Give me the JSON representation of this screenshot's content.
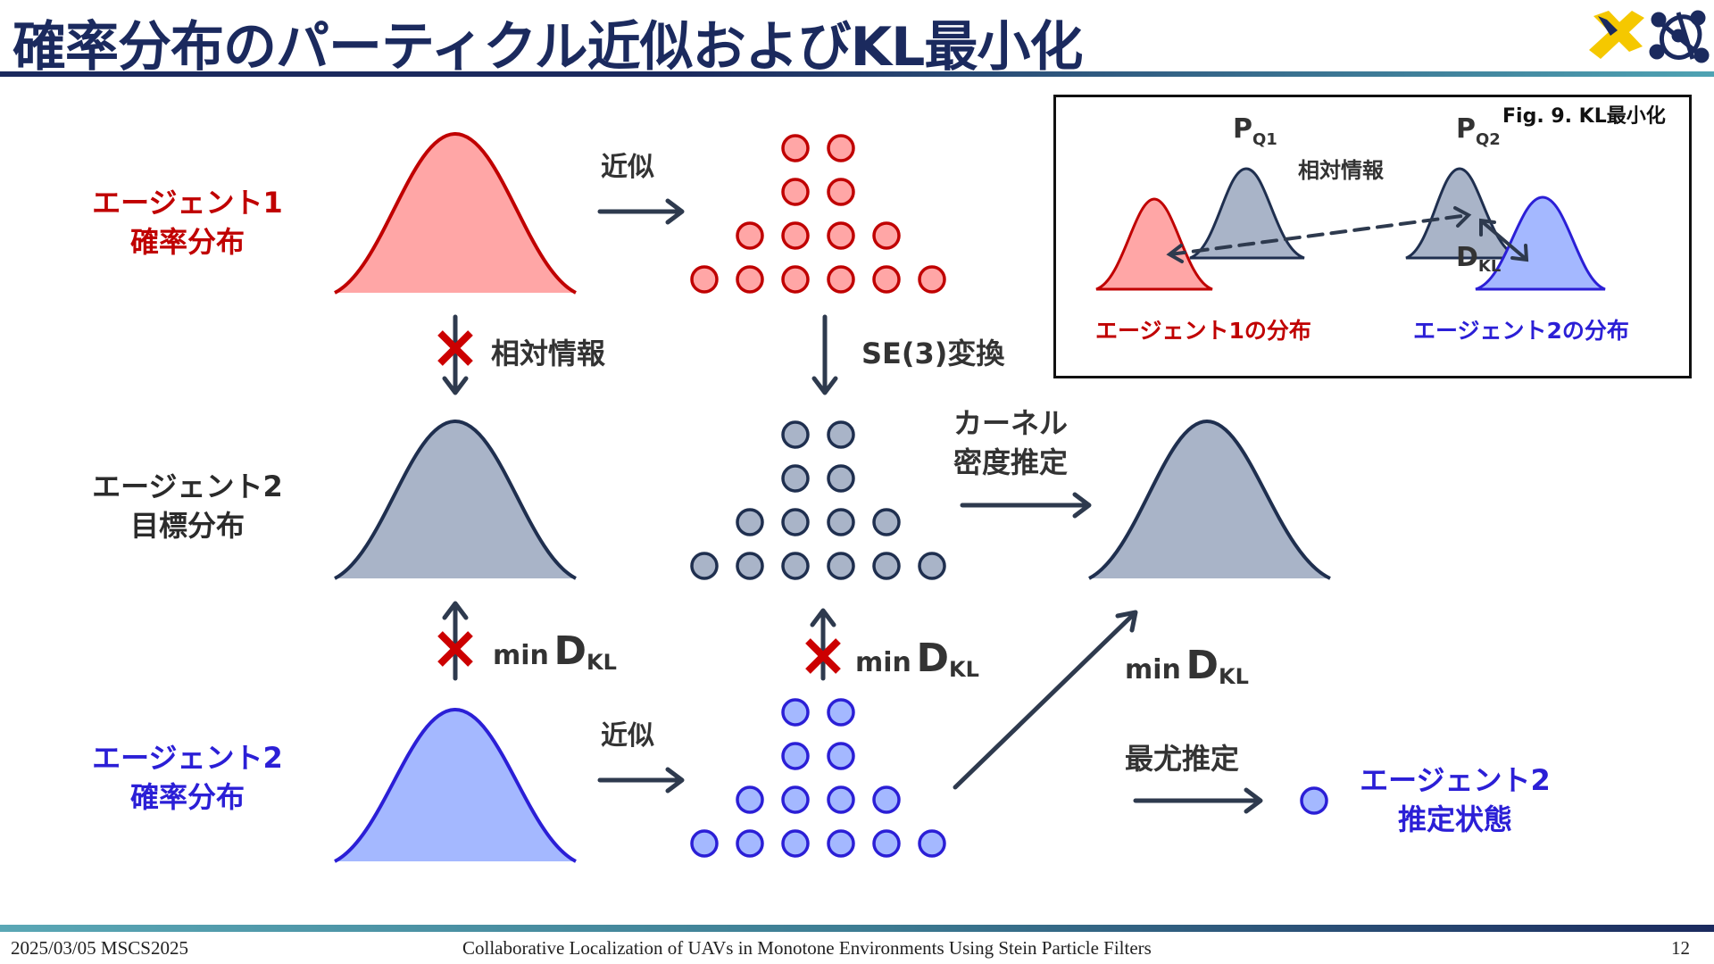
{
  "slide": {
    "title": "確率分布のパーティクル近似およびKL最小化",
    "footer_left": "2025/03/05 MSCS2025",
    "footer_center": "Collaborative Localization of UAVs in Monotone Environments Using Stein Particle Filters",
    "page_number": "12"
  },
  "rows": {
    "agent1": {
      "line1": "エージェント1",
      "line2": "確率分布"
    },
    "target": {
      "line1": "エージェント2",
      "line2": "目標分布"
    },
    "agent2": {
      "line1": "エージェント2",
      "line2": "確率分布"
    }
  },
  "arrows": {
    "approx_top": "近似",
    "approx_bottom": "近似",
    "relative_info": "相対情報",
    "se3": "SE(3)変換",
    "kde_line1": "カーネル",
    "kde_line2": "密度推定",
    "min": "min",
    "dkl_d": "D",
    "dkl_sub": "KL",
    "mle": "最尤推定"
  },
  "estimate": {
    "line1": "エージェント2",
    "line2": "推定状態"
  },
  "inset": {
    "caption": "Fig. 9. KL最小化",
    "pq1_p": "P",
    "pq1_sub": "Q1",
    "pq2_p": "P",
    "pq2_sub": "Q2",
    "relative_info": "相対情報",
    "dkl_d": "D",
    "dkl_sub": "KL",
    "agent1_dist": "エージェント1の分布",
    "agent2_dist": "エージェント2の分布"
  },
  "colors": {
    "title": "#1b2a5e",
    "red_stroke": "#c00000",
    "red_fill": "#ffa6a6",
    "gray_stroke": "#1f2f4f",
    "gray_fill": "#a9b4c8",
    "blue_stroke": "#2b1fd6",
    "blue_fill": "#a4b8ff",
    "arrow": "#2e3a4e",
    "cross": "#cc0000",
    "logo_yellow": "#f5c800",
    "logo_navy": "#1b2a5e"
  },
  "icons": [
    "logo-x-icon",
    "network-logo-icon",
    "cross-mark-icon",
    "arrow-icon"
  ]
}
